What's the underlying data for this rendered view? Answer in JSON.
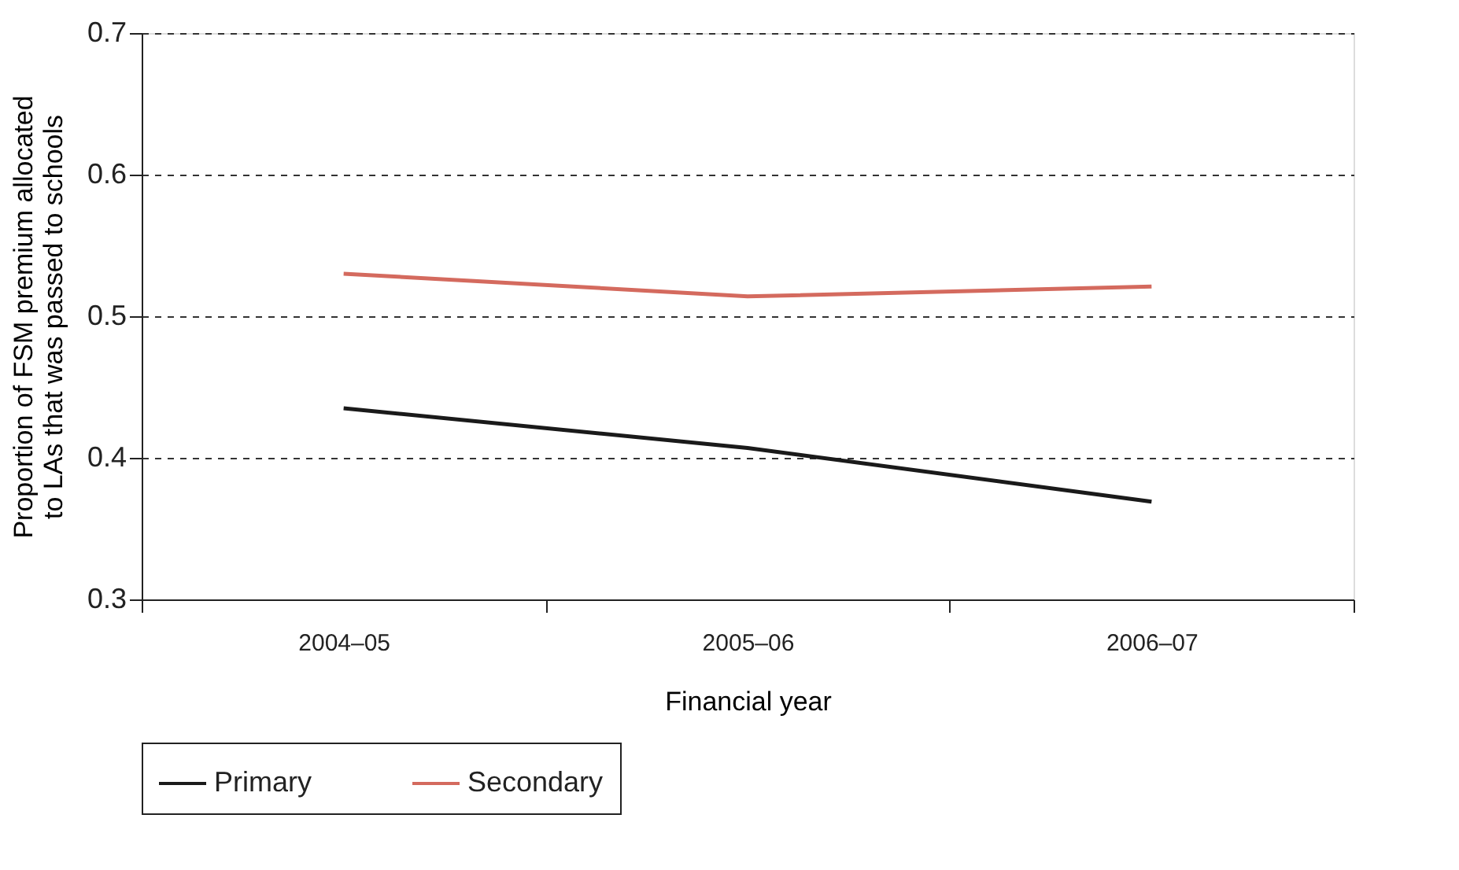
{
  "chart_data": {
    "type": "line",
    "xlabel": "Financial year",
    "ylabel": "Proportion of FSM premium allocated\nto LAs that was passed to schools",
    "categories": [
      "2004–05",
      "2005–06",
      "2006–07"
    ],
    "series": [
      {
        "name": "Primary",
        "color": "#1a1a1a",
        "values": [
          0.435,
          0.407,
          0.369
        ]
      },
      {
        "name": "Secondary",
        "color": "#d46a5e",
        "values": [
          0.53,
          0.514,
          0.521
        ]
      }
    ],
    "ylim": [
      0.3,
      0.7
    ],
    "yticks": [
      0.3,
      0.4,
      0.5,
      0.6,
      0.7
    ],
    "grid": "y",
    "legend": "bottom",
    "marker": "none",
    "line_style": "solid"
  }
}
